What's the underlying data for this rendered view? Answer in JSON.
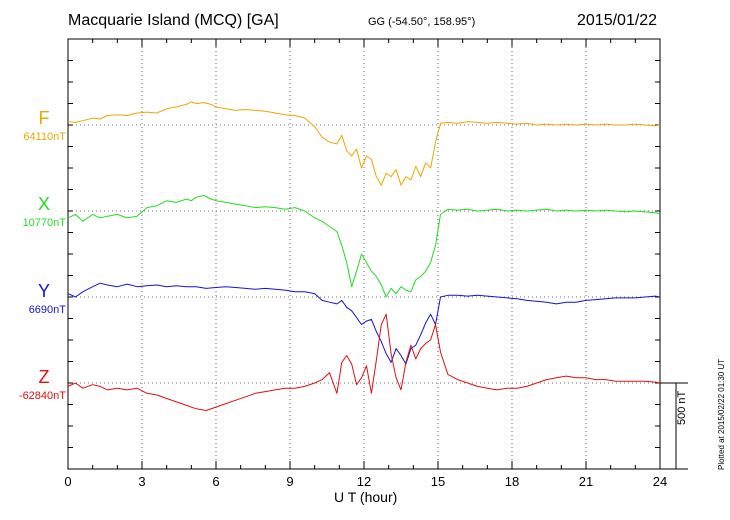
{
  "header": {
    "station": "Macquarie Island (MCQ)  [GA]",
    "coords": "GG (-54.50°, 158.95°)",
    "date": "2015/01/22"
  },
  "footnote": "Plotted at 2015/02/22 01:30 UT",
  "colors": {
    "F": "#f0a500",
    "X": "#22dd22",
    "Y": "#1414d2",
    "Z": "#dd1111"
  },
  "chart_data": {
    "type": "line",
    "xlabel": "U T (hour)",
    "xlim": [
      0,
      24
    ],
    "xticks": [
      "0",
      "3",
      "6",
      "9",
      "12",
      "15",
      "18",
      "21",
      "24"
    ],
    "scale_bar": "500 nT",
    "grid": true,
    "series": [
      {
        "name": "F",
        "baseline": "64110nT",
        "x": [
          0,
          0.3,
          0.6,
          1,
          1.3,
          1.6,
          2,
          2.4,
          2.8,
          3.2,
          3.6,
          4,
          4.4,
          4.8,
          5,
          5.2,
          5.5,
          5.8,
          6,
          6.4,
          6.8,
          7.2,
          7.6,
          8,
          8.4,
          8.8,
          9.2,
          9.6,
          10,
          10.3,
          10.6,
          10.9,
          11.1,
          11.3,
          11.5,
          11.7,
          11.9,
          12.1,
          12.3,
          12.5,
          12.7,
          12.9,
          13.1,
          13.3,
          13.5,
          13.7,
          13.9,
          14.1,
          14.3,
          14.5,
          14.7,
          14.9,
          15.1,
          15.4,
          15.8,
          16.2,
          16.6,
          17,
          17.4,
          17.8,
          18.2,
          18.6,
          19,
          19.4,
          19.8,
          20.2,
          20.6,
          21,
          21.4,
          21.8,
          22.2,
          22.6,
          23,
          23.4,
          23.8,
          24
        ],
        "y": [
          20,
          15,
          25,
          40,
          35,
          55,
          60,
          55,
          70,
          75,
          70,
          95,
          105,
          120,
          135,
          125,
          130,
          120,
          105,
          95,
          85,
          90,
          85,
          80,
          70,
          60,
          55,
          40,
          -10,
          -70,
          -100,
          -110,
          -60,
          -150,
          -180,
          -140,
          -250,
          -180,
          -200,
          -300,
          -350,
          -280,
          -300,
          -260,
          -350,
          -300,
          -320,
          -240,
          -300,
          -220,
          -250,
          -100,
          10,
          15,
          10,
          20,
          15,
          10,
          15,
          10,
          5,
          10,
          0,
          5,
          0,
          5,
          0,
          5,
          0,
          5,
          0,
          0,
          5,
          0,
          -5,
          0
        ]
      },
      {
        "name": "X",
        "baseline": "10770nT",
        "x": [
          0,
          0.3,
          0.6,
          1,
          1.3,
          1.6,
          2,
          2.4,
          2.8,
          3.2,
          3.6,
          4,
          4.4,
          4.8,
          5,
          5.2,
          5.5,
          5.8,
          6,
          6.4,
          6.8,
          7.2,
          7.6,
          8,
          8.4,
          8.8,
          9.2,
          9.6,
          10,
          10.3,
          10.6,
          10.9,
          11.1,
          11.3,
          11.5,
          11.7,
          11.9,
          12.1,
          12.3,
          12.5,
          12.7,
          12.9,
          13.1,
          13.3,
          13.5,
          13.7,
          13.9,
          14.1,
          14.3,
          14.5,
          14.7,
          14.9,
          15.1,
          15.4,
          15.8,
          16.2,
          16.6,
          17,
          17.4,
          17.8,
          18.2,
          18.6,
          19,
          19.4,
          19.8,
          20.2,
          20.6,
          21,
          21.4,
          21.8,
          22.2,
          22.6,
          23,
          23.4,
          23.8,
          24
        ],
        "y": [
          -40,
          -20,
          -60,
          -20,
          -40,
          -30,
          -20,
          -40,
          -30,
          20,
          30,
          60,
          50,
          70,
          60,
          80,
          90,
          70,
          60,
          50,
          40,
          30,
          20,
          25,
          20,
          10,
          20,
          0,
          -40,
          -60,
          -90,
          -120,
          -200,
          -300,
          -440,
          -350,
          -250,
          -300,
          -350,
          -380,
          -430,
          -500,
          -450,
          -480,
          -440,
          -460,
          -470,
          -400,
          -380,
          -350,
          -300,
          -200,
          -20,
          10,
          5,
          10,
          0,
          5,
          10,
          0,
          5,
          0,
          5,
          10,
          0,
          5,
          0,
          5,
          0,
          5,
          0,
          -5,
          0,
          -5,
          -10,
          -15
        ]
      },
      {
        "name": "Y",
        "baseline": "6690nT",
        "x": [
          0,
          0.3,
          0.6,
          1,
          1.3,
          1.6,
          2,
          2.4,
          2.8,
          3.2,
          3.6,
          4,
          4.4,
          4.8,
          5.2,
          5.6,
          6,
          6.4,
          6.8,
          7.2,
          7.6,
          8,
          8.4,
          8.8,
          9.2,
          9.6,
          10,
          10.3,
          10.6,
          10.9,
          11.1,
          11.3,
          11.5,
          11.7,
          11.9,
          12.1,
          12.3,
          12.5,
          12.7,
          12.9,
          13.1,
          13.3,
          13.5,
          13.7,
          13.9,
          14.1,
          14.3,
          14.5,
          14.7,
          14.9,
          15.1,
          15.4,
          15.8,
          16.2,
          16.6,
          17,
          17.4,
          17.8,
          18.2,
          18.6,
          19,
          19.4,
          19.8,
          20.2,
          20.6,
          21,
          21.4,
          21.8,
          22.2,
          22.6,
          23,
          23.4,
          23.8,
          24
        ],
        "y": [
          20,
          0,
          30,
          60,
          80,
          70,
          60,
          75,
          60,
          65,
          70,
          60,
          65,
          60,
          60,
          50,
          55,
          60,
          55,
          50,
          45,
          50,
          45,
          40,
          30,
          30,
          20,
          -20,
          -30,
          -40,
          -20,
          -60,
          -80,
          -120,
          -160,
          -140,
          -130,
          -200,
          -260,
          -330,
          -380,
          -300,
          -340,
          -390,
          -300,
          -280,
          -220,
          -150,
          -100,
          -160,
          0,
          10,
          10,
          5,
          10,
          5,
          0,
          -5,
          -10,
          -20,
          -25,
          -30,
          -40,
          -30,
          -30,
          -20,
          -15,
          -10,
          -5,
          -5,
          -5,
          0,
          5,
          0
        ]
      },
      {
        "name": "Z",
        "baseline": "-62840nT",
        "x": [
          0,
          0.3,
          0.6,
          1,
          1.3,
          1.6,
          2,
          2.4,
          2.8,
          3.2,
          3.6,
          4,
          4.4,
          4.8,
          5.2,
          5.6,
          6,
          6.4,
          6.8,
          7.2,
          7.6,
          8,
          8.4,
          8.8,
          9.2,
          9.6,
          10,
          10.3,
          10.6,
          10.9,
          11.1,
          11.3,
          11.5,
          11.7,
          11.9,
          12.1,
          12.3,
          12.5,
          12.7,
          12.9,
          13.1,
          13.3,
          13.5,
          13.7,
          13.9,
          14.1,
          14.3,
          14.5,
          14.7,
          14.9,
          15.1,
          15.4,
          15.8,
          16.2,
          16.6,
          17,
          17.4,
          17.8,
          18.2,
          18.6,
          19,
          19.4,
          19.8,
          20.2,
          20.6,
          21,
          21.4,
          21.8,
          22.2,
          22.6,
          23,
          23.4,
          23.8,
          24
        ],
        "y": [
          -20,
          0,
          -30,
          -10,
          -20,
          -40,
          -30,
          -40,
          -30,
          -60,
          -70,
          -90,
          -110,
          -130,
          -150,
          -160,
          -140,
          -120,
          -100,
          -80,
          -60,
          -50,
          -40,
          -30,
          -30,
          -20,
          0,
          20,
          60,
          -60,
          120,
          160,
          110,
          -10,
          30,
          100,
          -60,
          130,
          340,
          400,
          170,
          30,
          -40,
          120,
          220,
          140,
          200,
          230,
          250,
          340,
          180,
          50,
          20,
          0,
          -20,
          -30,
          -40,
          -30,
          -30,
          -20,
          0,
          20,
          30,
          40,
          30,
          30,
          20,
          20,
          10,
          10,
          10,
          10,
          5,
          0
        ]
      }
    ]
  }
}
